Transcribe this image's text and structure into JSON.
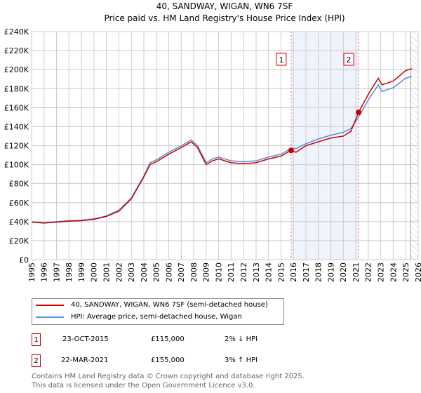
{
  "chart_data": {
    "type": "line",
    "title": "40, SANDWAY, WIGAN, WN6 7SF",
    "subtitle": "Price paid vs. HM Land Registry's House Price Index (HPI)",
    "xlim": [
      1995,
      2026
    ],
    "ylim": [
      0,
      240000
    ],
    "x_ticks": [
      "1995",
      "1996",
      "1997",
      "1998",
      "1999",
      "2000",
      "2001",
      "2002",
      "2003",
      "2004",
      "2005",
      "2006",
      "2007",
      "2008",
      "2009",
      "2010",
      "2011",
      "2012",
      "2013",
      "2014",
      "2015",
      "2016",
      "2017",
      "2018",
      "2019",
      "2020",
      "2021",
      "2022",
      "2023",
      "2024",
      "2025",
      "2026"
    ],
    "y_ticks": [
      "£0",
      "£20K",
      "£40K",
      "£60K",
      "£80K",
      "£100K",
      "£120K",
      "£140K",
      "£160K",
      "£180K",
      "£200K",
      "£220K",
      "£240K"
    ],
    "grid": true,
    "shaded_range": [
      2015.81,
      2021.22
    ],
    "hatched_from": 2025.4,
    "series": [
      {
        "name": "40, SANDWAY, WIGAN, WN6 7SF (semi-detached house)",
        "color": "#cc0000",
        "x": [
          1995,
          1996,
          1997,
          1998,
          1999,
          2000,
          2001,
          2002,
          2003,
          2004,
          2004.5,
          2005,
          2006,
          2007,
          2007.8,
          2008.3,
          2009,
          2009.5,
          2010,
          2011,
          2012,
          2013,
          2014,
          2015,
          2015.81,
          2016.2,
          2017,
          2018,
          2019,
          2020,
          2020.6,
          2021.22,
          2022,
          2022.8,
          2023.1,
          2024,
          2025,
          2025.5
        ],
        "y": [
          39500,
          38500,
          39500,
          40500,
          41000,
          42500,
          45500,
          51000,
          64000,
          87000,
          100000,
          103000,
          111000,
          118000,
          124000,
          118000,
          100000,
          104000,
          106000,
          102000,
          101000,
          102000,
          106000,
          109000,
          115000,
          113000,
          120000,
          124000,
          128000,
          130000,
          135000,
          155000,
          174000,
          191000,
          184000,
          188000,
          199000,
          201000
        ]
      },
      {
        "name": "HPI: Average price, semi-detached house, Wigan",
        "color": "#5b8fd6",
        "x": [
          1995,
          1996,
          1997,
          1998,
          1999,
          2000,
          2001,
          2002,
          2003,
          2004,
          2004.5,
          2005,
          2006,
          2007,
          2007.8,
          2008.3,
          2009,
          2009.5,
          2010,
          2011,
          2012,
          2013,
          2014,
          2015,
          2015.81,
          2016.2,
          2017,
          2018,
          2019,
          2020,
          2020.6,
          2021.22,
          2022,
          2022.8,
          2023.1,
          2024,
          2025,
          2025.5
        ],
        "y": [
          40000,
          39000,
          40000,
          41000,
          41500,
          43000,
          46000,
          52000,
          65000,
          88000,
          102000,
          105000,
          113000,
          120000,
          126000,
          120000,
          102000,
          106000,
          108000,
          104000,
          103000,
          104000,
          108000,
          111000,
          117000,
          117000,
          122000,
          127000,
          131000,
          134000,
          138000,
          150000,
          168000,
          184000,
          177000,
          181000,
          191000,
          193000
        ]
      }
    ],
    "sales": [
      {
        "label": "1",
        "x": 2015.81,
        "y": 115000
      },
      {
        "label": "2",
        "x": 2021.22,
        "y": 155000
      }
    ]
  },
  "legend": {
    "items": [
      "40, SANDWAY, WIGAN, WN6 7SF (semi-detached house)",
      "HPI: Average price, semi-detached house, Wigan"
    ]
  },
  "transactions": [
    {
      "num": "1",
      "date": "23-OCT-2015",
      "price": "£115,000",
      "hpi": "2% ↓ HPI"
    },
    {
      "num": "2",
      "date": "22-MAR-2021",
      "price": "£155,000",
      "hpi": "3% ↑ HPI"
    }
  ],
  "footer": [
    "Contains HM Land Registry data © Crown copyright and database right 2025.",
    "This data is licensed under the Open Government Licence v3.0."
  ]
}
